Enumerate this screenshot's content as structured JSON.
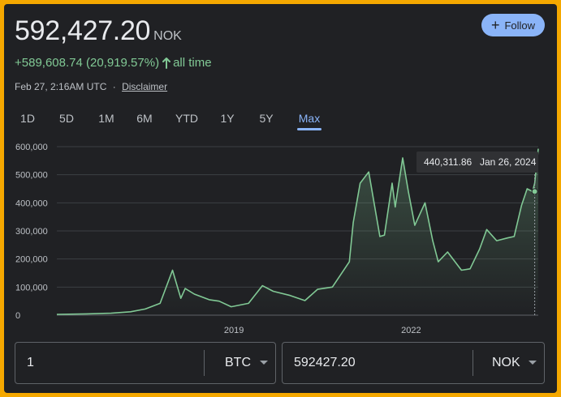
{
  "header": {
    "price": "592,427.20",
    "currency": "NOK",
    "change": "+589,608.74 (20,919.57%)",
    "change_period": "all time",
    "timestamp": "Feb 27, 2:16AM UTC",
    "separator": "·",
    "disclaimer": "Disclaimer",
    "follow_label": "Follow",
    "follow_icon": "plus-icon",
    "accent_color": "#8ab4f8",
    "positive_color": "#81c995"
  },
  "tabs": [
    "1D",
    "5D",
    "1M",
    "6M",
    "YTD",
    "1Y",
    "5Y",
    "Max"
  ],
  "active_tab": "Max",
  "tooltip": {
    "value": "440,311.86",
    "date": "Jan 26, 2024"
  },
  "chart_data": {
    "type": "area",
    "title": "",
    "xlabel": "",
    "ylabel": "",
    "ylim": [
      0,
      600000
    ],
    "y_ticks": [
      0,
      100000,
      200000,
      300000,
      400000,
      500000,
      600000
    ],
    "y_tick_labels": [
      "0",
      "100,000",
      "200,000",
      "300,000",
      "400,000",
      "500,000",
      "600,000"
    ],
    "x_tick_labels": [
      "2019",
      "2022"
    ],
    "x_tick_dates": [
      "2019-01-01",
      "2022-01-01"
    ],
    "grid": true,
    "series": [
      {
        "x": [
          "2016-01-01",
          "2016-07-01",
          "2016-12-01",
          "2017-04-01",
          "2017-07-01",
          "2017-10-01",
          "2017-12-17",
          "2018-02-06",
          "2018-03-05",
          "2018-05-01",
          "2018-08-01",
          "2018-10-01",
          "2018-12-15",
          "2019-04-01",
          "2019-06-26",
          "2019-09-01",
          "2019-12-15",
          "2020-03-15",
          "2020-06-01",
          "2020-09-01",
          "2020-12-15",
          "2021-01-08",
          "2021-02-20",
          "2021-04-14",
          "2021-06-22",
          "2021-07-20",
          "2021-09-06",
          "2021-09-25",
          "2021-11-10",
          "2021-12-15",
          "2022-01-24",
          "2022-03-28",
          "2022-05-15",
          "2022-06-18",
          "2022-08-15",
          "2022-11-09",
          "2023-01-01",
          "2023-03-01",
          "2023-04-14",
          "2023-06-15",
          "2023-08-20",
          "2023-10-01",
          "2023-11-15",
          "2023-12-20",
          "2024-01-23",
          "2024-02-05",
          "2024-02-27"
        ],
        "values": [
          3000,
          4500,
          7000,
          12000,
          22000,
          42000,
          160000,
          60000,
          95000,
          75000,
          55000,
          50000,
          30000,
          42000,
          105000,
          85000,
          70000,
          52000,
          92000,
          100000,
          190000,
          330000,
          470000,
          510000,
          280000,
          285000,
          470000,
          385000,
          560000,
          440000,
          320000,
          400000,
          265000,
          190000,
          225000,
          160000,
          165000,
          235000,
          305000,
          265000,
          275000,
          280000,
          390000,
          450000,
          440000,
          470000,
          592427
        ]
      }
    ],
    "line_color": "#81c995"
  },
  "converter": {
    "amount": "1",
    "from_unit": "BTC",
    "result": "592427.20",
    "to_unit": "NOK"
  }
}
